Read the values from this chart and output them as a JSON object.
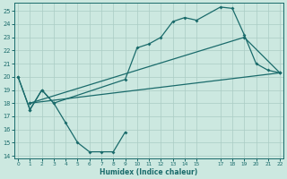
{
  "xlabel": "Humidex (Indice chaleur)",
  "bg_color": "#cce8e0",
  "grid_color": "#aaccc4",
  "line_color": "#1a6b6b",
  "xlim": [
    -0.3,
    22.3
  ],
  "ylim": [
    13.8,
    25.6
  ],
  "yticks": [
    14,
    15,
    16,
    17,
    18,
    19,
    20,
    21,
    22,
    23,
    24,
    25
  ],
  "xticks": [
    0,
    1,
    2,
    3,
    4,
    5,
    6,
    7,
    8,
    9,
    10,
    11,
    12,
    13,
    14,
    15,
    17,
    18,
    19,
    20,
    21,
    22
  ],
  "line1_x": [
    0,
    1,
    2,
    3,
    4,
    5,
    6,
    7,
    8,
    9
  ],
  "line1_y": [
    20.0,
    17.5,
    19.0,
    18.0,
    16.5,
    15.0,
    14.3,
    14.3,
    14.3,
    15.8
  ],
  "line2_x": [
    0,
    1,
    2,
    3,
    9,
    10,
    11,
    12,
    13,
    14,
    15,
    17,
    18,
    19,
    20,
    21,
    22
  ],
  "line2_y": [
    20.0,
    17.5,
    19.0,
    18.0,
    19.8,
    22.2,
    22.5,
    23.0,
    24.2,
    24.5,
    24.3,
    25.3,
    25.2,
    23.2,
    21.0,
    20.5,
    20.3
  ],
  "line3_x": [
    1,
    22
  ],
  "line3_y": [
    18.0,
    20.3
  ],
  "line4_x": [
    1,
    19,
    22
  ],
  "line4_y": [
    18.0,
    23.0,
    20.3
  ]
}
